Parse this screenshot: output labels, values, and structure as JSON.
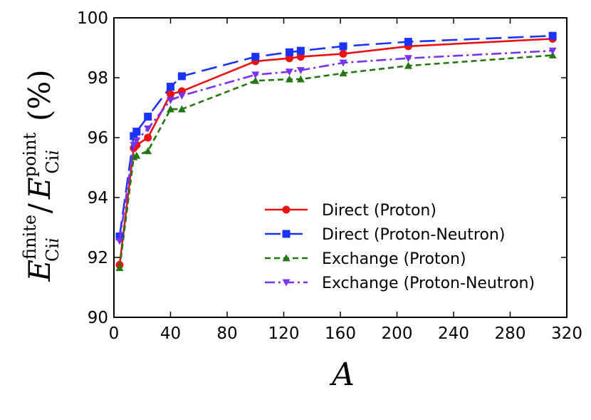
{
  "chart_data": {
    "type": "line",
    "xlabel": "A",
    "ylabel": {
      "base": "E",
      "sup_top": "finite",
      "sub_top": "Ci",
      "sub_top_var": "i",
      "divider": "/",
      "sup_bottom": "point",
      "sub_bottom": "Ci",
      "sub_bottom_var": "i",
      "unit": "(%)"
    },
    "xlim": [
      0,
      320
    ],
    "ylim": [
      90,
      100
    ],
    "xticks": [
      0,
      40,
      80,
      120,
      160,
      200,
      240,
      280,
      320
    ],
    "yticks": [
      90,
      92,
      94,
      96,
      98,
      100
    ],
    "legend_position": "lower-right",
    "series": [
      {
        "name": "Direct (Proton)",
        "color": "#ee1111",
        "marker": "circle",
        "dash": "solid",
        "x": [
          4,
          14,
          16,
          24,
          40,
          48,
          100,
          124,
          132,
          162,
          208,
          310
        ],
        "y": [
          91.75,
          95.65,
          95.75,
          96.0,
          97.45,
          97.55,
          98.55,
          98.65,
          98.7,
          98.8,
          99.05,
          99.3
        ]
      },
      {
        "name": "Direct (Proton-Neutron)",
        "color": "#1a33ff",
        "marker": "square",
        "dash": "long",
        "x": [
          4,
          14,
          16,
          24,
          40,
          48,
          100,
          124,
          132,
          162,
          208,
          310
        ],
        "y": [
          92.7,
          96.05,
          96.2,
          96.7,
          97.7,
          98.05,
          98.7,
          98.85,
          98.9,
          99.05,
          99.2,
          99.4
        ]
      },
      {
        "name": "Exchange (Proton)",
        "color": "#227711",
        "marker": "triangle-up",
        "dash": "dashed",
        "x": [
          4,
          14,
          16,
          24,
          40,
          48,
          100,
          124,
          132,
          162,
          208,
          310
        ],
        "y": [
          91.65,
          95.35,
          95.4,
          95.55,
          96.95,
          96.95,
          97.9,
          97.95,
          97.95,
          98.15,
          98.4,
          98.75
        ]
      },
      {
        "name": "Exchange (Proton-Neutron)",
        "color": "#7733ee",
        "marker": "triangle-down",
        "dash": "dashdot",
        "x": [
          4,
          14,
          16,
          24,
          40,
          48,
          100,
          124,
          132,
          162,
          208,
          310
        ],
        "y": [
          92.55,
          95.75,
          95.9,
          96.3,
          97.25,
          97.4,
          98.1,
          98.2,
          98.25,
          98.5,
          98.65,
          98.9
        ]
      }
    ]
  }
}
